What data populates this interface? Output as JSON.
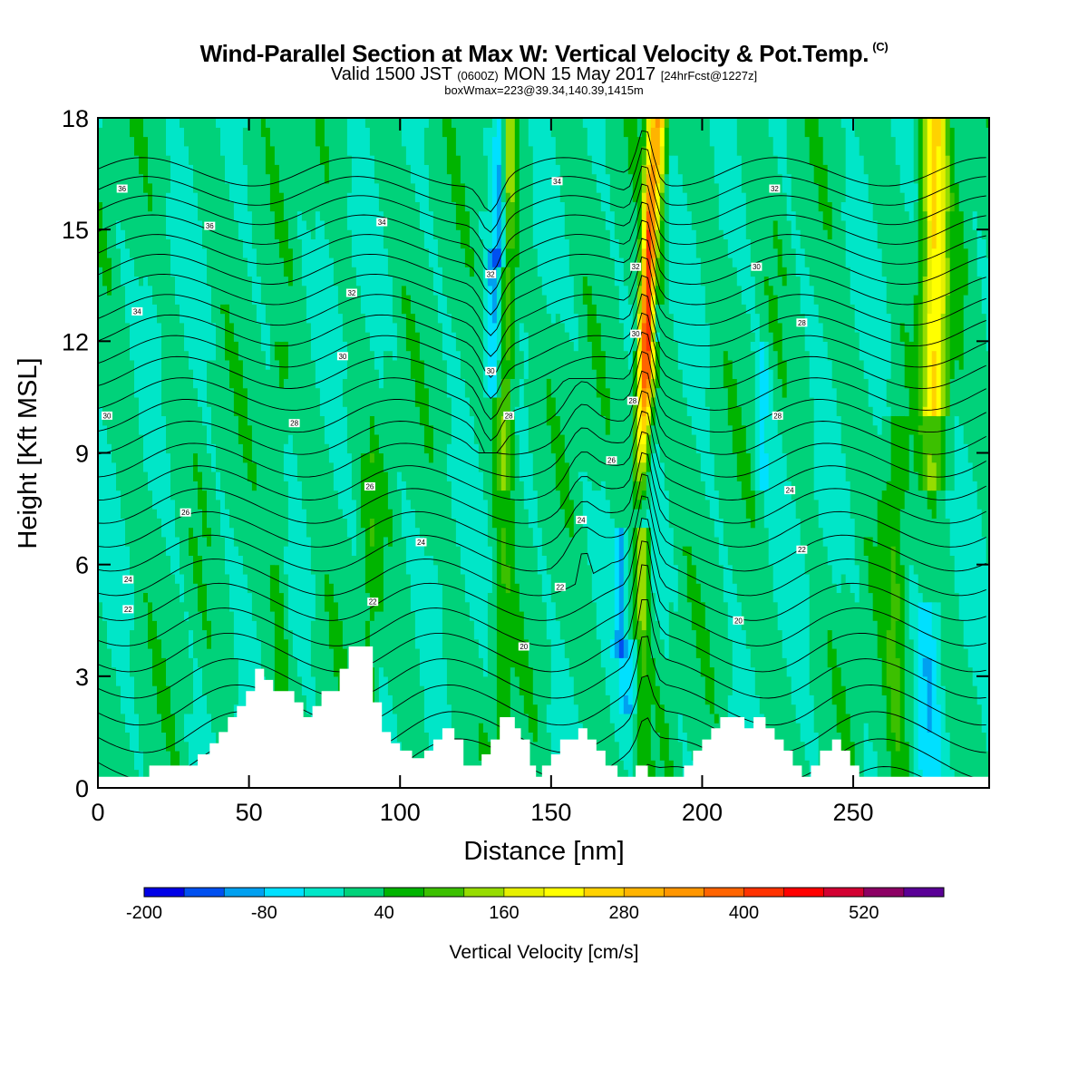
{
  "header": {
    "title": "Wind-Parallel Section at Max W: Vertical Velocity & Pot.Temp.",
    "copyright": "(C)",
    "valid_a": "Valid 1500 JST",
    "valid_utc": "(0600Z)",
    "valid_b": "MON 15 May 2017",
    "forecast": "[24hrFcst@1227z]",
    "boxmax": "boxWmax=223@39.34,140.39,1415m"
  },
  "colors": {
    "frame": "#000000",
    "terrain": "#ffffff",
    "contour": "#000000"
  },
  "chart_data": {
    "type": "heatmap",
    "xlabel": "Distance [nm]",
    "ylabel": "Height [Kft MSL]",
    "xlim": [
      0,
      295
    ],
    "ylim": [
      0,
      18
    ],
    "x_ticks": [
      0,
      50,
      100,
      150,
      200,
      250
    ],
    "y_ticks": [
      0,
      3,
      6,
      9,
      12,
      15,
      18
    ],
    "colorbar": {
      "title": "Vertical Velocity [cm/s]",
      "min": -200,
      "step": 40,
      "labels": [
        "-200",
        "-80",
        "40",
        "160",
        "280",
        "400",
        "520"
      ],
      "colors": [
        "#0000e6",
        "#0050f0",
        "#00a0f0",
        "#00e0ff",
        "#00e6c8",
        "#00d27a",
        "#00b400",
        "#3cc000",
        "#96dc00",
        "#e6f000",
        "#ffff00",
        "#ffd200",
        "#ffb400",
        "#ff9600",
        "#ff6400",
        "#ff3200",
        "#ff0000",
        "#d20032",
        "#8c0064",
        "#5a0096"
      ]
    },
    "terrain_kft": [
      [
        0,
        0.3
      ],
      [
        17,
        0.3
      ],
      [
        17,
        0.6
      ],
      [
        33,
        0.6
      ],
      [
        33,
        0.9
      ],
      [
        37,
        0.9
      ],
      [
        37,
        1.2
      ],
      [
        40,
        1.2
      ],
      [
        40,
        1.5
      ],
      [
        43,
        1.5
      ],
      [
        43,
        1.9
      ],
      [
        46,
        1.9
      ],
      [
        46,
        2.2
      ],
      [
        49,
        2.2
      ],
      [
        49,
        2.6
      ],
      [
        52,
        2.6
      ],
      [
        52,
        3.2
      ],
      [
        55,
        3.2
      ],
      [
        55,
        2.9
      ],
      [
        58,
        2.9
      ],
      [
        58,
        2.6
      ],
      [
        65,
        2.6
      ],
      [
        65,
        2.3
      ],
      [
        68,
        2.3
      ],
      [
        68,
        1.9
      ],
      [
        71,
        1.9
      ],
      [
        71,
        2.2
      ],
      [
        74,
        2.2
      ],
      [
        74,
        2.6
      ],
      [
        80,
        2.6
      ],
      [
        80,
        3.2
      ],
      [
        83,
        3.2
      ],
      [
        83,
        3.8
      ],
      [
        91,
        3.8
      ],
      [
        91,
        2.3
      ],
      [
        94,
        2.3
      ],
      [
        94,
        1.5
      ],
      [
        97,
        1.5
      ],
      [
        97,
        1.2
      ],
      [
        100,
        1.2
      ],
      [
        100,
        1.0
      ],
      [
        104,
        1.0
      ],
      [
        104,
        0.8
      ],
      [
        108,
        0.8
      ],
      [
        108,
        1.0
      ],
      [
        111,
        1.0
      ],
      [
        111,
        1.3
      ],
      [
        114,
        1.3
      ],
      [
        114,
        1.6
      ],
      [
        118,
        1.6
      ],
      [
        118,
        1.3
      ],
      [
        121,
        1.3
      ],
      [
        121,
        0.6
      ],
      [
        127,
        0.6
      ],
      [
        127,
        0.9
      ],
      [
        130,
        0.9
      ],
      [
        130,
        1.3
      ],
      [
        133,
        1.3
      ],
      [
        133,
        1.9
      ],
      [
        138,
        1.9
      ],
      [
        138,
        1.6
      ],
      [
        140,
        1.6
      ],
      [
        140,
        1.3
      ],
      [
        143,
        1.3
      ],
      [
        143,
        0.6
      ],
      [
        145,
        0.6
      ],
      [
        145,
        0.3
      ],
      [
        147,
        0.3
      ],
      [
        147,
        0.6
      ],
      [
        150,
        0.6
      ],
      [
        150,
        0.9
      ],
      [
        153,
        0.9
      ],
      [
        153,
        1.3
      ],
      [
        159,
        1.3
      ],
      [
        159,
        1.6
      ],
      [
        162,
        1.6
      ],
      [
        162,
        1.3
      ],
      [
        165,
        1.3
      ],
      [
        165,
        1.0
      ],
      [
        168,
        1.0
      ],
      [
        168,
        0.6
      ],
      [
        172,
        0.6
      ],
      [
        172,
        0.3
      ],
      [
        178,
        0.3
      ],
      [
        178,
        0.6
      ],
      [
        182,
        0.6
      ],
      [
        182,
        0.3
      ],
      [
        194,
        0.3
      ],
      [
        194,
        0.6
      ],
      [
        197,
        0.6
      ],
      [
        197,
        1.0
      ],
      [
        200,
        1.0
      ],
      [
        200,
        1.3
      ],
      [
        203,
        1.3
      ],
      [
        203,
        1.6
      ],
      [
        206,
        1.6
      ],
      [
        206,
        1.9
      ],
      [
        214,
        1.9
      ],
      [
        214,
        1.6
      ],
      [
        217,
        1.6
      ],
      [
        217,
        1.9
      ],
      [
        221,
        1.9
      ],
      [
        221,
        1.6
      ],
      [
        224,
        1.6
      ],
      [
        224,
        1.3
      ],
      [
        227,
        1.3
      ],
      [
        227,
        1.0
      ],
      [
        230,
        1.0
      ],
      [
        230,
        0.6
      ],
      [
        233,
        0.6
      ],
      [
        233,
        0.3
      ],
      [
        236,
        0.3
      ],
      [
        236,
        0.6
      ],
      [
        239,
        0.6
      ],
      [
        239,
        1.0
      ],
      [
        243,
        1.0
      ],
      [
        243,
        1.3
      ],
      [
        246,
        1.3
      ],
      [
        246,
        1.0
      ],
      [
        249,
        1.0
      ],
      [
        249,
        0.6
      ],
      [
        252,
        0.6
      ],
      [
        252,
        0.3
      ],
      [
        295,
        0.3
      ]
    ],
    "contour_labels": [
      {
        "x": 8,
        "y": 16.1,
        "text": "36"
      },
      {
        "x": 37,
        "y": 15.1,
        "text": "36"
      },
      {
        "x": 94,
        "y": 15.2,
        "text": "34"
      },
      {
        "x": 152,
        "y": 16.3,
        "text": "34"
      },
      {
        "x": 224,
        "y": 16.1,
        "text": "32"
      },
      {
        "x": 13,
        "y": 12.8,
        "text": "34"
      },
      {
        "x": 84,
        "y": 13.3,
        "text": "32"
      },
      {
        "x": 130,
        "y": 13.8,
        "text": "32"
      },
      {
        "x": 178,
        "y": 14.0,
        "text": "32"
      },
      {
        "x": 218,
        "y": 14.0,
        "text": "30"
      },
      {
        "x": 233,
        "y": 12.5,
        "text": "28"
      },
      {
        "x": 81,
        "y": 11.6,
        "text": "30"
      },
      {
        "x": 130,
        "y": 11.2,
        "text": "30"
      },
      {
        "x": 178,
        "y": 12.2,
        "text": "30"
      },
      {
        "x": 3,
        "y": 10.0,
        "text": "30"
      },
      {
        "x": 65,
        "y": 9.8,
        "text": "28"
      },
      {
        "x": 136,
        "y": 10.0,
        "text": "28"
      },
      {
        "x": 177,
        "y": 10.4,
        "text": "28"
      },
      {
        "x": 225,
        "y": 10.0,
        "text": "28"
      },
      {
        "x": 170,
        "y": 8.8,
        "text": "26"
      },
      {
        "x": 90,
        "y": 8.1,
        "text": "26"
      },
      {
        "x": 29,
        "y": 7.4,
        "text": "26"
      },
      {
        "x": 229,
        "y": 8.0,
        "text": "24"
      },
      {
        "x": 160,
        "y": 7.2,
        "text": "24"
      },
      {
        "x": 107,
        "y": 6.6,
        "text": "24"
      },
      {
        "x": 233,
        "y": 6.4,
        "text": "22"
      },
      {
        "x": 10,
        "y": 5.6,
        "text": "24"
      },
      {
        "x": 153,
        "y": 5.4,
        "text": "22"
      },
      {
        "x": 91,
        "y": 5.0,
        "text": "22"
      },
      {
        "x": 10,
        "y": 4.8,
        "text": "22"
      },
      {
        "x": 212,
        "y": 4.5,
        "text": "20"
      },
      {
        "x": 141,
        "y": 3.8,
        "text": "20"
      }
    ]
  }
}
